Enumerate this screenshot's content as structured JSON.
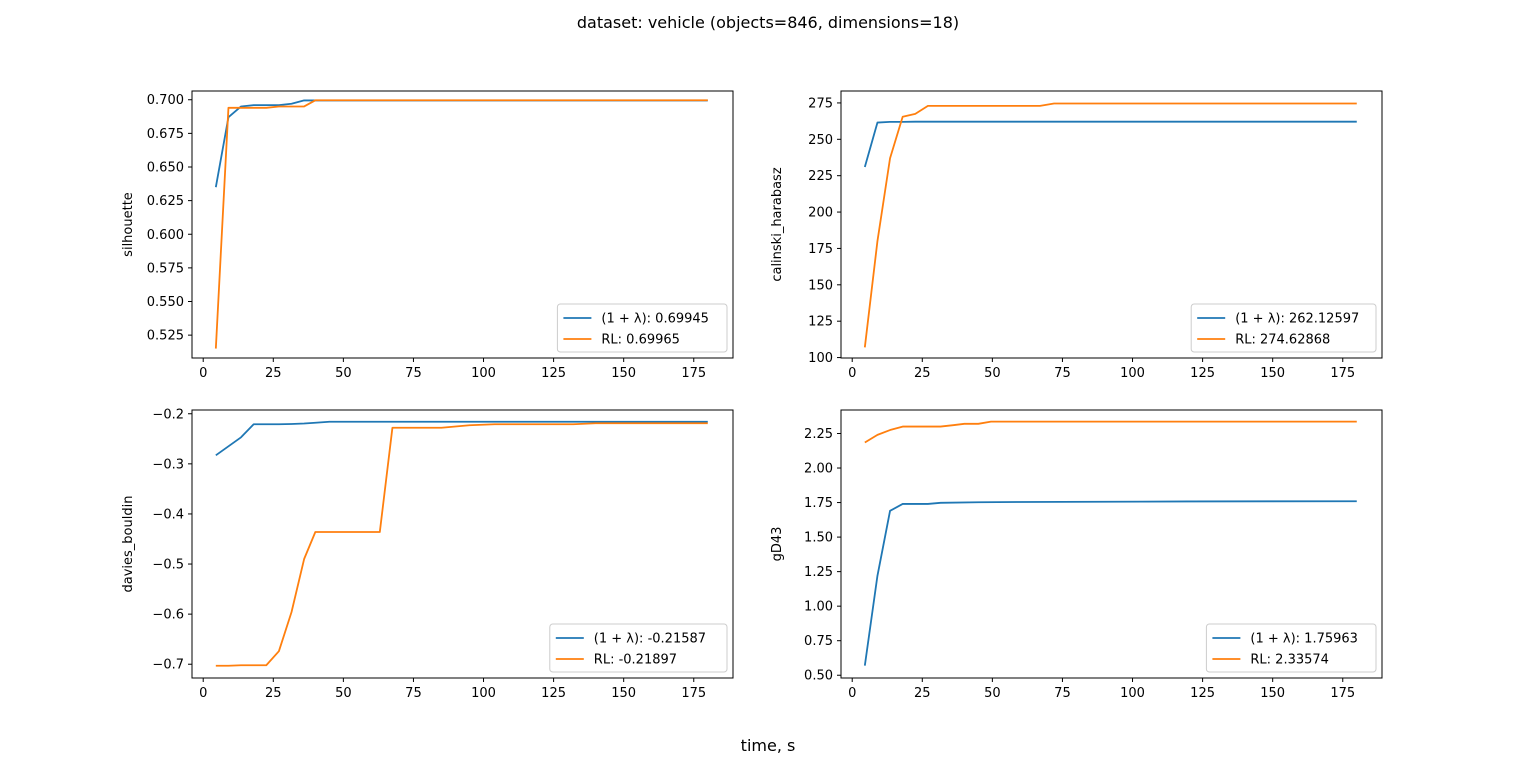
{
  "figure": {
    "suptitle": "dataset: vehicle (objects=846, dimensions=18)",
    "xlabel": "time, s",
    "colors": {
      "series_a": "#1f77b4",
      "series_b": "#ff7f0e"
    }
  },
  "chart_data": [
    {
      "type": "line",
      "ylabel": "silhouette",
      "xlim": [
        -4,
        189
      ],
      "ylim": [
        0.508,
        0.7065
      ],
      "xticks": [
        0,
        25,
        50,
        75,
        100,
        125,
        150,
        175
      ],
      "xtick_labels": [
        "0",
        "25",
        "50",
        "75",
        "100",
        "125",
        "150",
        "175"
      ],
      "yticks": [
        0.525,
        0.55,
        0.575,
        0.6,
        0.625,
        0.65,
        0.675,
        0.7
      ],
      "ytick_labels": [
        "0.525",
        "0.550",
        "0.575",
        "0.600",
        "0.625",
        "0.650",
        "0.675",
        "0.700"
      ],
      "legend_position": "lower right",
      "series": [
        {
          "name": "(1 + λ): 0.69945",
          "color": "#1f77b4",
          "x": [
            4.5,
            9,
            13.5,
            18,
            22.5,
            27,
            31.5,
            36,
            40,
            45,
            60,
            90,
            120,
            150,
            180
          ],
          "y": [
            0.635,
            0.687,
            0.695,
            0.696,
            0.696,
            0.696,
            0.697,
            0.6995,
            0.6995,
            0.6995,
            0.6995,
            0.6995,
            0.6995,
            0.6995,
            0.6995
          ]
        },
        {
          "name": "RL: 0.69965",
          "color": "#ff7f0e",
          "x": [
            4.5,
            9,
            13.5,
            18,
            22.5,
            27,
            31.5,
            36,
            40,
            45,
            60,
            90,
            120,
            150,
            180
          ],
          "y": [
            0.515,
            0.694,
            0.694,
            0.694,
            0.694,
            0.695,
            0.695,
            0.695,
            0.6996,
            0.6996,
            0.6996,
            0.6996,
            0.6996,
            0.6996,
            0.6996
          ]
        }
      ]
    },
    {
      "type": "line",
      "ylabel": "calinski_harabasz",
      "xlim": [
        -4,
        189
      ],
      "ylim": [
        99.7,
        283.2
      ],
      "xticks": [
        0,
        25,
        50,
        75,
        100,
        125,
        150,
        175
      ],
      "xtick_labels": [
        "0",
        "25",
        "50",
        "75",
        "100",
        "125",
        "150",
        "175"
      ],
      "yticks": [
        100,
        125,
        150,
        175,
        200,
        225,
        250,
        275
      ],
      "ytick_labels": [
        "100",
        "125",
        "150",
        "175",
        "200",
        "225",
        "250",
        "275"
      ],
      "legend_position": "lower right",
      "series": [
        {
          "name": "(1 + λ): 262.12597",
          "color": "#1f77b4",
          "x": [
            4.5,
            9,
            13.5,
            18,
            22.5,
            30,
            60,
            90,
            120,
            150,
            180
          ],
          "y": [
            231,
            261.5,
            262,
            262,
            262.1,
            262.1,
            262.1,
            262.1,
            262.1,
            262.1,
            262.1
          ]
        },
        {
          "name": "RL: 274.62868",
          "color": "#ff7f0e",
          "x": [
            4.5,
            9,
            13.5,
            18,
            22.5,
            27,
            31.5,
            45,
            60,
            67,
            72,
            90,
            120,
            150,
            180
          ],
          "y": [
            107,
            180,
            237,
            265.5,
            267.5,
            273,
            273,
            273,
            273,
            273,
            274.6,
            274.6,
            274.6,
            274.6,
            274.6
          ]
        }
      ]
    },
    {
      "type": "line",
      "ylabel": "davies_bouldin",
      "xlim": [
        -4,
        189
      ],
      "ylim": [
        -0.7275,
        -0.1925
      ],
      "xticks": [
        0,
        25,
        50,
        75,
        100,
        125,
        150,
        175
      ],
      "xtick_labels": [
        "0",
        "25",
        "50",
        "75",
        "100",
        "125",
        "150",
        "175"
      ],
      "yticks": [
        -0.7,
        -0.6,
        -0.5,
        -0.4,
        -0.3,
        -0.2
      ],
      "ytick_labels": [
        "−0.7",
        "−0.6",
        "−0.5",
        "−0.4",
        "−0.3",
        "−0.2"
      ],
      "legend_position": "lower right",
      "series": [
        {
          "name": "(1 + λ): -0.21587",
          "color": "#1f77b4",
          "x": [
            4.5,
            9,
            13.5,
            18,
            22.5,
            27,
            31.5,
            36,
            40,
            45,
            60,
            90,
            120,
            150,
            180
          ],
          "y": [
            -0.283,
            -0.265,
            -0.247,
            -0.221,
            -0.221,
            -0.221,
            -0.2205,
            -0.2195,
            -0.218,
            -0.2159,
            -0.2159,
            -0.2159,
            -0.2159,
            -0.2159,
            -0.2159
          ]
        },
        {
          "name": "RL: -0.21897",
          "color": "#ff7f0e",
          "x": [
            4.5,
            9,
            13.5,
            18,
            22.5,
            27,
            31.5,
            36,
            40,
            45,
            54,
            63,
            67.5,
            72,
            85,
            95,
            104,
            120,
            132,
            140,
            150,
            180
          ],
          "y": [
            -0.703,
            -0.703,
            -0.702,
            -0.702,
            -0.702,
            -0.674,
            -0.596,
            -0.49,
            -0.436,
            -0.436,
            -0.436,
            -0.436,
            -0.228,
            -0.228,
            -0.228,
            -0.223,
            -0.221,
            -0.221,
            -0.221,
            -0.219,
            -0.219,
            -0.219
          ]
        }
      ]
    },
    {
      "type": "line",
      "ylabel": "gD43",
      "xlim": [
        -4,
        189
      ],
      "ylim": [
        0.48,
        2.42
      ],
      "xticks": [
        0,
        25,
        50,
        75,
        100,
        125,
        150,
        175
      ],
      "xtick_labels": [
        "0",
        "25",
        "50",
        "75",
        "100",
        "125",
        "150",
        "175"
      ],
      "yticks": [
        0.5,
        0.75,
        1.0,
        1.25,
        1.5,
        1.75,
        2.0,
        2.25
      ],
      "ytick_labels": [
        "0.50",
        "0.75",
        "1.00",
        "1.25",
        "1.50",
        "1.75",
        "2.00",
        "2.25"
      ],
      "legend_position": "lower right",
      "series": [
        {
          "name": "(1 + λ): 1.75963",
          "color": "#1f77b4",
          "x": [
            4.5,
            9,
            13.5,
            18,
            22.5,
            27,
            31.5,
            45,
            60,
            90,
            120,
            150,
            180
          ],
          "y": [
            0.57,
            1.22,
            1.69,
            1.74,
            1.74,
            1.74,
            1.748,
            1.752,
            1.754,
            1.756,
            1.758,
            1.759,
            1.7596
          ]
        },
        {
          "name": "RL: 2.33574",
          "color": "#ff7f0e",
          "x": [
            4.5,
            9,
            13.5,
            18,
            22.5,
            27,
            31.5,
            36,
            40,
            45,
            49.5,
            60,
            90,
            120,
            150,
            180
          ],
          "y": [
            2.185,
            2.24,
            2.275,
            2.3,
            2.3,
            2.3,
            2.3,
            2.31,
            2.32,
            2.32,
            2.3357,
            2.3357,
            2.3357,
            2.3357,
            2.3357,
            2.3357
          ]
        }
      ]
    }
  ]
}
